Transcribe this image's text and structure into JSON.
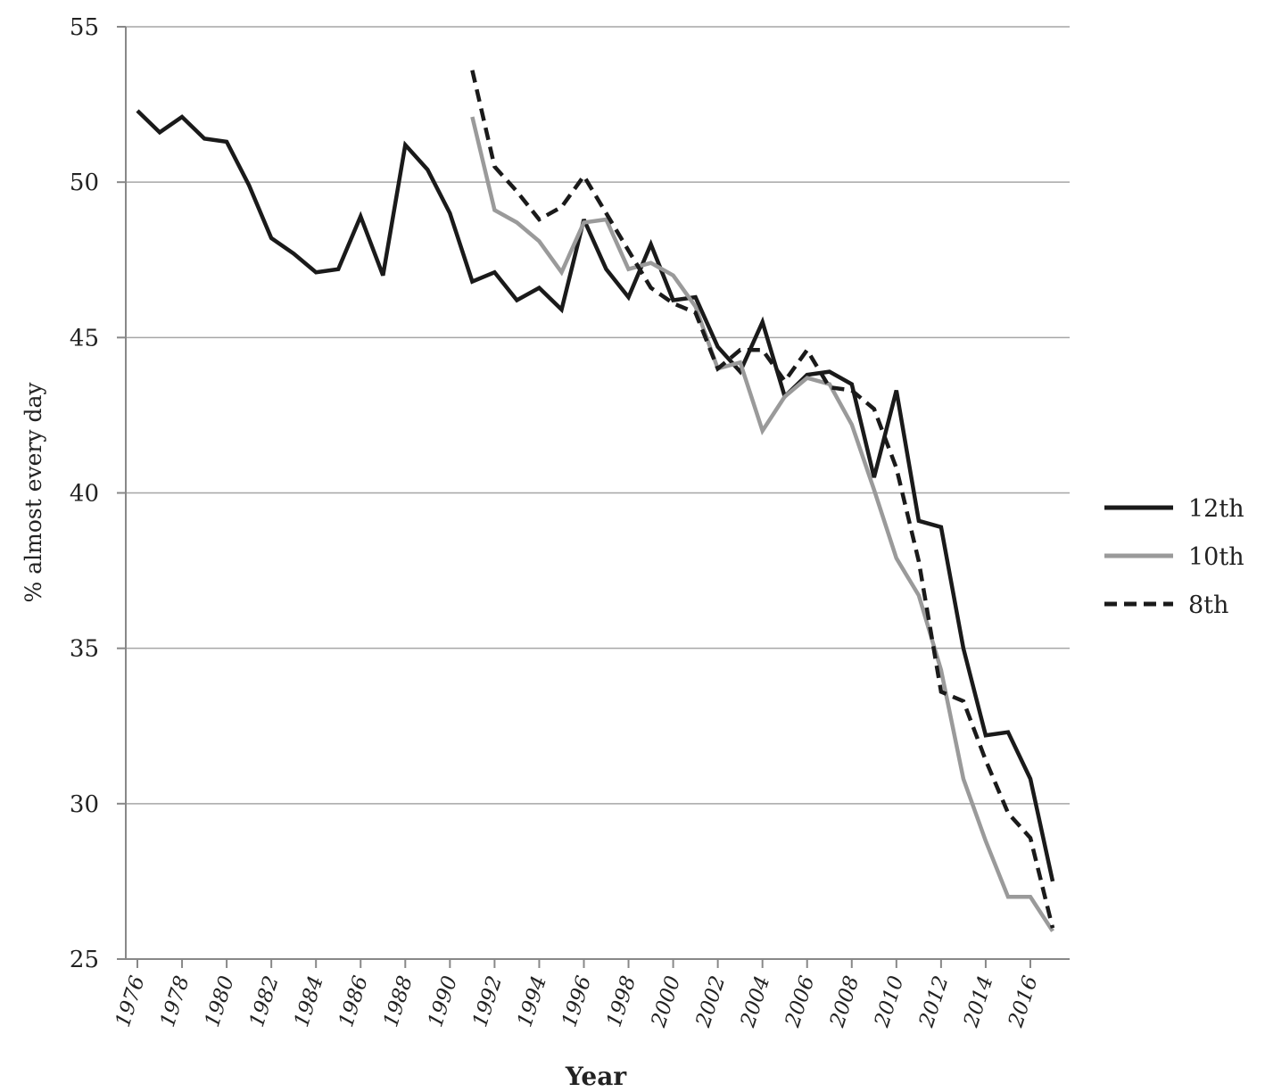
{
  "chart_data": {
    "type": "line",
    "title": "",
    "xlabel": "Year",
    "ylabel": "% almost every day",
    "ylim": [
      25,
      55
    ],
    "yticks": [
      25,
      30,
      35,
      40,
      45,
      50,
      55
    ],
    "xlim": [
      1976,
      2017
    ],
    "xticks": [
      1976,
      1978,
      1980,
      1982,
      1984,
      1986,
      1988,
      1990,
      1992,
      1994,
      1996,
      1998,
      2000,
      2002,
      2004,
      2006,
      2008,
      2010,
      2012,
      2014,
      2016
    ],
    "grid": "horizontal",
    "legend_position": "right",
    "series": [
      {
        "name": "12th",
        "color": "#1a1a1a",
        "style": "solid",
        "x": [
          1976,
          1977,
          1978,
          1979,
          1980,
          1981,
          1982,
          1983,
          1984,
          1985,
          1986,
          1987,
          1988,
          1989,
          1990,
          1991,
          1992,
          1993,
          1994,
          1995,
          1996,
          1997,
          1998,
          1999,
          2000,
          2001,
          2002,
          2003,
          2004,
          2005,
          2006,
          2007,
          2008,
          2009,
          2010,
          2011,
          2012,
          2013,
          2014,
          2015,
          2016,
          2017
        ],
        "values": [
          52.3,
          51.6,
          52.1,
          51.4,
          51.3,
          49.9,
          48.2,
          47.7,
          47.1,
          47.2,
          48.9,
          47.0,
          51.2,
          50.4,
          49.0,
          46.8,
          47.1,
          46.2,
          46.6,
          45.9,
          48.8,
          47.2,
          46.3,
          48.0,
          46.2,
          46.3,
          44.7,
          43.9,
          45.5,
          43.1,
          43.8,
          43.9,
          43.5,
          40.5,
          43.3,
          39.1,
          38.9,
          35.0,
          32.2,
          32.3,
          30.8,
          27.5
        ]
      },
      {
        "name": "10th",
        "color": "#9a9a9a",
        "style": "solid",
        "x": [
          1991,
          1992,
          1993,
          1994,
          1995,
          1996,
          1997,
          1998,
          1999,
          2000,
          2001,
          2002,
          2003,
          2004,
          2005,
          2006,
          2007,
          2008,
          2009,
          2010,
          2011,
          2012,
          2013,
          2014,
          2015,
          2016,
          2017
        ],
        "values": [
          52.1,
          49.1,
          48.7,
          48.1,
          47.1,
          48.7,
          48.8,
          47.2,
          47.4,
          47.0,
          46.0,
          44.0,
          44.2,
          42.0,
          43.1,
          43.7,
          43.5,
          42.2,
          40.1,
          37.9,
          36.7,
          34.3,
          30.8,
          28.8,
          27.0,
          27.0,
          25.9
        ]
      },
      {
        "name": "8th",
        "color": "#1a1a1a",
        "style": "dashed",
        "x": [
          1991,
          1992,
          1993,
          1994,
          1995,
          1996,
          1997,
          1998,
          1999,
          2000,
          2001,
          2002,
          2003,
          2004,
          2005,
          2006,
          2007,
          2008,
          2009,
          2010,
          2011,
          2012,
          2013,
          2014,
          2015,
          2016,
          2017
        ],
        "values": [
          53.6,
          50.5,
          49.7,
          48.8,
          49.2,
          50.2,
          49.0,
          47.8,
          46.6,
          46.1,
          45.8,
          44.0,
          44.6,
          44.6,
          43.6,
          44.6,
          43.4,
          43.3,
          42.7,
          40.8,
          37.8,
          33.6,
          33.3,
          31.4,
          29.7,
          28.9,
          26.0
        ]
      }
    ]
  }
}
